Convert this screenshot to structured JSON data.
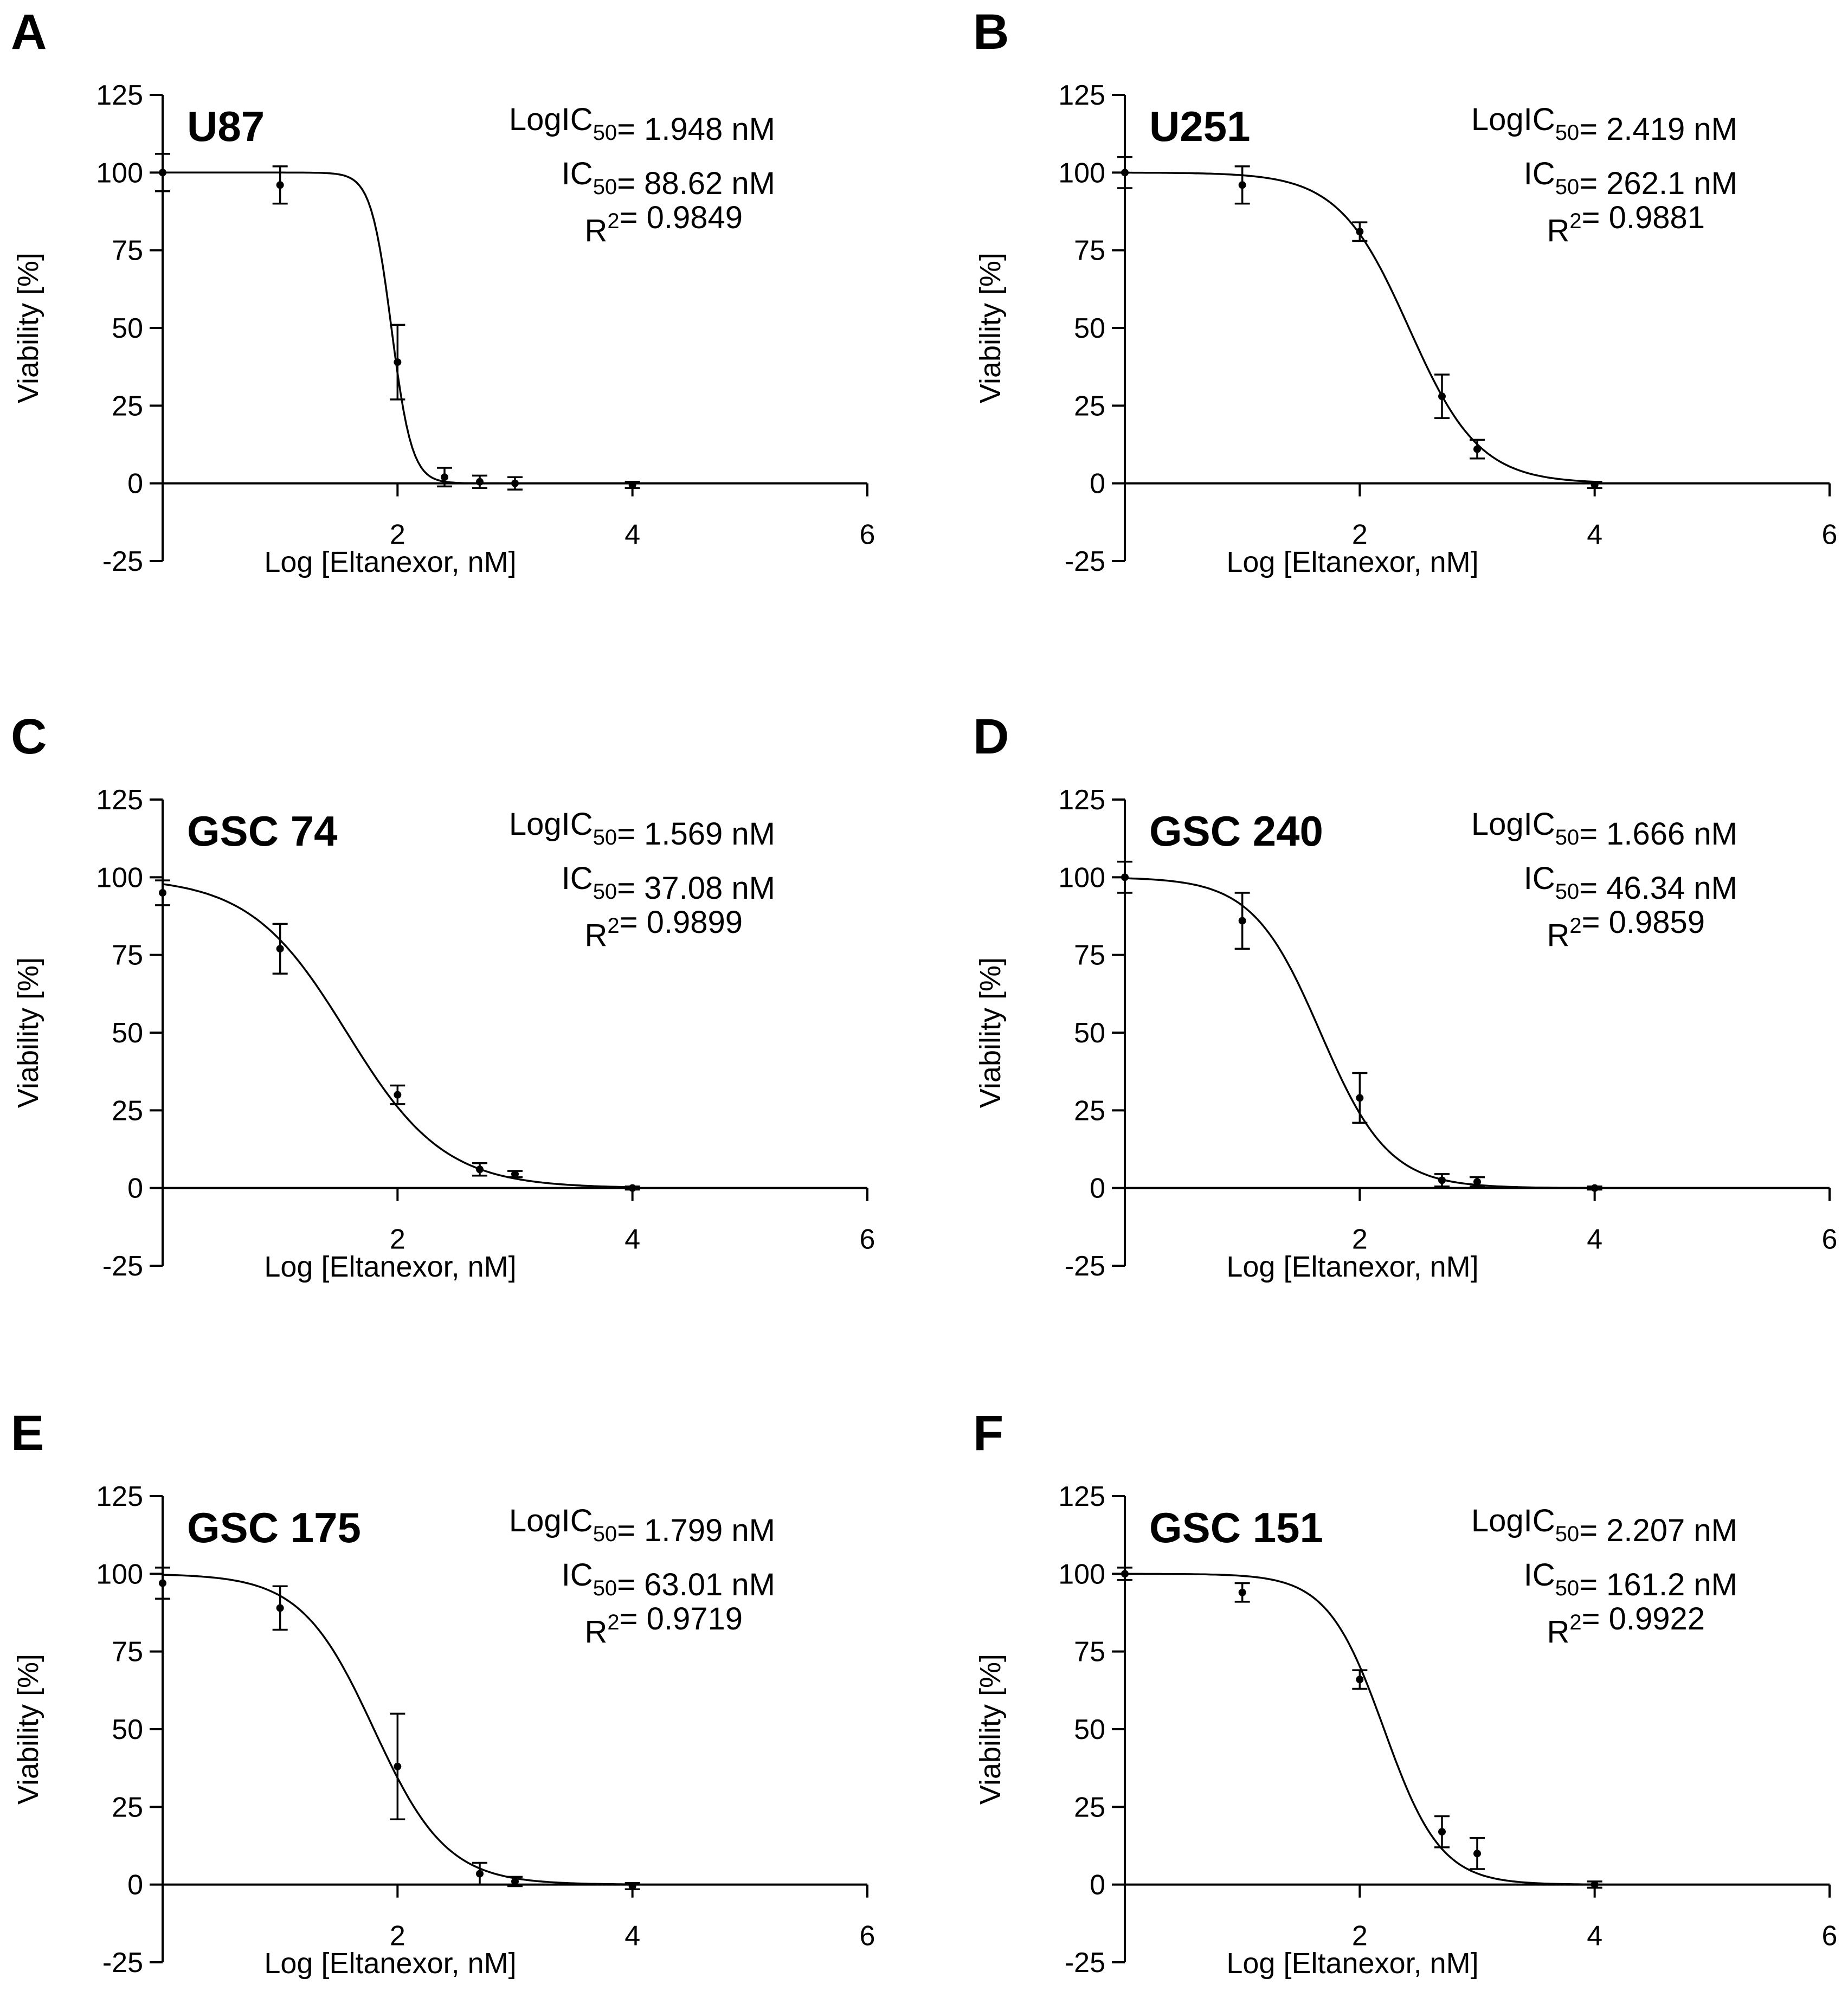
{
  "chart_data": [
    {
      "type": "scatter",
      "panel": "A",
      "title": "U87",
      "stats": {
        "log_ic50": "= 1.948 nM",
        "ic50": "= 88.62 nM",
        "r2": "= 0.9849"
      },
      "xlabel": "Log [Eltanexor, nM]",
      "ylabel": "Viability [%]",
      "xlim": [
        0,
        6
      ],
      "ylim": [
        -25,
        125
      ],
      "xticks": [
        "2",
        "4",
        "6"
      ],
      "yticks": [
        "125",
        "100",
        "75",
        "50",
        "25",
        "0",
        "-25"
      ],
      "fit": {
        "top": 100,
        "bottom": 0,
        "logic50": 1.948,
        "hill": -5
      },
      "points": [
        {
          "x": 0,
          "y": 100,
          "err": 6
        },
        {
          "x": 1,
          "y": 96,
          "err": 6
        },
        {
          "x": 2,
          "y": 39,
          "err": 12
        },
        {
          "x": 2.4,
          "y": 2,
          "err": 3
        },
        {
          "x": 2.7,
          "y": 0.5,
          "err": 2
        },
        {
          "x": 3,
          "y": 0,
          "err": 2
        },
        {
          "x": 4,
          "y": -0.5,
          "err": 1
        }
      ]
    },
    {
      "type": "scatter",
      "panel": "B",
      "title": "U251",
      "stats": {
        "log_ic50": "= 2.419 nM",
        "ic50": "= 262.1 nM",
        "r2": "= 0.9881"
      },
      "xlabel": "Log [Eltanexor, nM]",
      "ylabel": "Viability [%]",
      "xlim": [
        0,
        6
      ],
      "ylim": [
        -25,
        125
      ],
      "xticks": [
        "2",
        "4",
        "6"
      ],
      "yticks": [
        "125",
        "100",
        "75",
        "50",
        "25",
        "0",
        "-25"
      ],
      "fit": {
        "top": 100,
        "bottom": 0,
        "logic50": 2.419,
        "hill": -1.45
      },
      "points": [
        {
          "x": 0,
          "y": 100,
          "err": 5
        },
        {
          "x": 1,
          "y": 96,
          "err": 6
        },
        {
          "x": 2,
          "y": 81,
          "err": 3
        },
        {
          "x": 2.7,
          "y": 28,
          "err": 7
        },
        {
          "x": 3,
          "y": 11,
          "err": 3
        },
        {
          "x": 4,
          "y": -0.5,
          "err": 1
        }
      ]
    },
    {
      "type": "scatter",
      "panel": "C",
      "title": "GSC 74",
      "stats": {
        "log_ic50": "= 1.569 nM",
        "ic50": "= 37.08 nM",
        "r2": "= 0.9899"
      },
      "xlabel": "Log [Eltanexor, nM]",
      "ylabel": "Viability [%]",
      "xlim": [
        0,
        6
      ],
      "ylim": [
        -25,
        125
      ],
      "xticks": [
        "2",
        "4",
        "6"
      ],
      "yticks": [
        "125",
        "100",
        "75",
        "50",
        "25",
        "0",
        "-25"
      ],
      "fit": {
        "top": 100,
        "bottom": 0,
        "logic50": 1.569,
        "hill": -1.05
      },
      "points": [
        {
          "x": 0,
          "y": 95,
          "err": 4
        },
        {
          "x": 1,
          "y": 77,
          "err": 8
        },
        {
          "x": 2,
          "y": 30,
          "err": 3
        },
        {
          "x": 2.7,
          "y": 6,
          "err": 2
        },
        {
          "x": 3,
          "y": 4.5,
          "err": 1
        },
        {
          "x": 4,
          "y": 0,
          "err": 0.5
        }
      ]
    },
    {
      "type": "scatter",
      "panel": "D",
      "title": "GSC 240",
      "stats": {
        "log_ic50": "= 1.666 nM",
        "ic50": "= 46.34 nM",
        "r2": "= 0.9859"
      },
      "xlabel": "Log [Eltanexor, nM]",
      "ylabel": "Viability [%]",
      "xlim": [
        0,
        6
      ],
      "ylim": [
        -25,
        125
      ],
      "xticks": [
        "2",
        "4",
        "6"
      ],
      "yticks": [
        "125",
        "100",
        "75",
        "50",
        "25",
        "0",
        "-25"
      ],
      "fit": {
        "top": 100,
        "bottom": 0,
        "logic50": 1.666,
        "hill": -1.5
      },
      "points": [
        {
          "x": 0,
          "y": 100,
          "err": 5
        },
        {
          "x": 1,
          "y": 86,
          "err": 9
        },
        {
          "x": 2,
          "y": 29,
          "err": 8
        },
        {
          "x": 2.7,
          "y": 2.5,
          "err": 2
        },
        {
          "x": 3,
          "y": 2,
          "err": 1.5
        },
        {
          "x": 4,
          "y": 0,
          "err": 0.5
        }
      ]
    },
    {
      "type": "scatter",
      "panel": "E",
      "title": "GSC 175",
      "stats": {
        "log_ic50": "= 1.799 nM",
        "ic50": "= 63.01 nM",
        "r2": "= 0.9719"
      },
      "xlabel": "Log [Eltanexor, nM]",
      "ylabel": "Viability [%]",
      "xlim": [
        0,
        6
      ],
      "ylim": [
        -25,
        125
      ],
      "xticks": [
        "2",
        "4",
        "6"
      ],
      "yticks": [
        "125",
        "100",
        "75",
        "50",
        "25",
        "0",
        "-25"
      ],
      "fit": {
        "top": 100,
        "bottom": 0,
        "logic50": 1.799,
        "hill": -1.4
      },
      "points": [
        {
          "x": 0,
          "y": 97,
          "err": 5
        },
        {
          "x": 1,
          "y": 89,
          "err": 7
        },
        {
          "x": 2,
          "y": 38,
          "err": 17
        },
        {
          "x": 2.7,
          "y": 3.5,
          "err": 3.5
        },
        {
          "x": 3,
          "y": 1,
          "err": 1.5
        },
        {
          "x": 4,
          "y": -0.5,
          "err": 1
        }
      ]
    },
    {
      "type": "scatter",
      "panel": "F",
      "title": "GSC 151",
      "stats": {
        "log_ic50": "= 2.207 nM",
        "ic50": "= 161.2 nM",
        "r2": "= 0.9922"
      },
      "xlabel": "Log [Eltanexor, nM]",
      "ylabel": "Viability [%]",
      "xlim": [
        0,
        6
      ],
      "ylim": [
        -25,
        125
      ],
      "xticks": [
        "2",
        "4",
        "6"
      ],
      "yticks": [
        "125",
        "100",
        "75",
        "50",
        "25",
        "0",
        "-25"
      ],
      "fit": {
        "top": 100,
        "bottom": 0,
        "logic50": 2.207,
        "hill": -1.8
      },
      "points": [
        {
          "x": 0,
          "y": 100,
          "err": 2
        },
        {
          "x": 1,
          "y": 94,
          "err": 3
        },
        {
          "x": 2,
          "y": 66,
          "err": 3
        },
        {
          "x": 2.7,
          "y": 17,
          "err": 5
        },
        {
          "x": 3,
          "y": 10,
          "err": 5
        },
        {
          "x": 4,
          "y": 0,
          "err": 1
        }
      ]
    }
  ]
}
